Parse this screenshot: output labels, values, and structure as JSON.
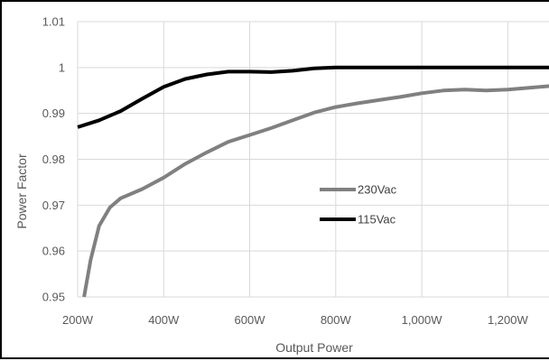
{
  "chart_data": {
    "type": "line",
    "title": "",
    "xlabel": "Output Power",
    "ylabel": "Power Factor",
    "xlim": [
      200,
      1300
    ],
    "ylim": [
      0.95,
      1.01
    ],
    "x_ticks": [
      {
        "value": 200,
        "label": "200W"
      },
      {
        "value": 400,
        "label": "400W"
      },
      {
        "value": 600,
        "label": "600W"
      },
      {
        "value": 800,
        "label": "800W"
      },
      {
        "value": 1000,
        "label": "1,000W"
      },
      {
        "value": 1200,
        "label": "1,200W"
      }
    ],
    "y_ticks": [
      {
        "value": 0.95,
        "label": "0.95"
      },
      {
        "value": 0.96,
        "label": "0.96"
      },
      {
        "value": 0.97,
        "label": "0.97"
      },
      {
        "value": 0.98,
        "label": "0.98"
      },
      {
        "value": 0.99,
        "label": "0.99"
      },
      {
        "value": 1.0,
        "label": "1"
      },
      {
        "value": 1.01,
        "label": "1.01"
      }
    ],
    "grid": true,
    "legend_position": "center",
    "series": [
      {
        "name": "230Vac",
        "color": "#808080",
        "points": [
          [
            215,
            0.95
          ],
          [
            230,
            0.958
          ],
          [
            250,
            0.9655
          ],
          [
            275,
            0.9695
          ],
          [
            300,
            0.9715
          ],
          [
            350,
            0.9735
          ],
          [
            400,
            0.976
          ],
          [
            450,
            0.979
          ],
          [
            500,
            0.9815
          ],
          [
            550,
            0.9838
          ],
          [
            600,
            0.9853
          ],
          [
            650,
            0.9868
          ],
          [
            700,
            0.9885
          ],
          [
            750,
            0.9902
          ],
          [
            800,
            0.9914
          ],
          [
            850,
            0.9922
          ],
          [
            900,
            0.9929
          ],
          [
            950,
            0.9936
          ],
          [
            1000,
            0.9944
          ],
          [
            1050,
            0.995
          ],
          [
            1100,
            0.9952
          ],
          [
            1150,
            0.995
          ],
          [
            1200,
            0.9952
          ],
          [
            1250,
            0.9956
          ],
          [
            1300,
            0.996
          ]
        ]
      },
      {
        "name": "115Vac",
        "color": "#000000",
        "points": [
          [
            200,
            0.987
          ],
          [
            250,
            0.9885
          ],
          [
            300,
            0.9905
          ],
          [
            350,
            0.9932
          ],
          [
            400,
            0.9958
          ],
          [
            450,
            0.9975
          ],
          [
            500,
            0.9985
          ],
          [
            550,
            0.9991
          ],
          [
            600,
            0.9991
          ],
          [
            650,
            0.999
          ],
          [
            700,
            0.9993
          ],
          [
            750,
            0.9998
          ],
          [
            800,
            1.0
          ],
          [
            900,
            1.0
          ],
          [
            1000,
            1.0
          ],
          [
            1100,
            1.0
          ],
          [
            1200,
            1.0
          ],
          [
            1300,
            1.0
          ]
        ]
      }
    ]
  }
}
